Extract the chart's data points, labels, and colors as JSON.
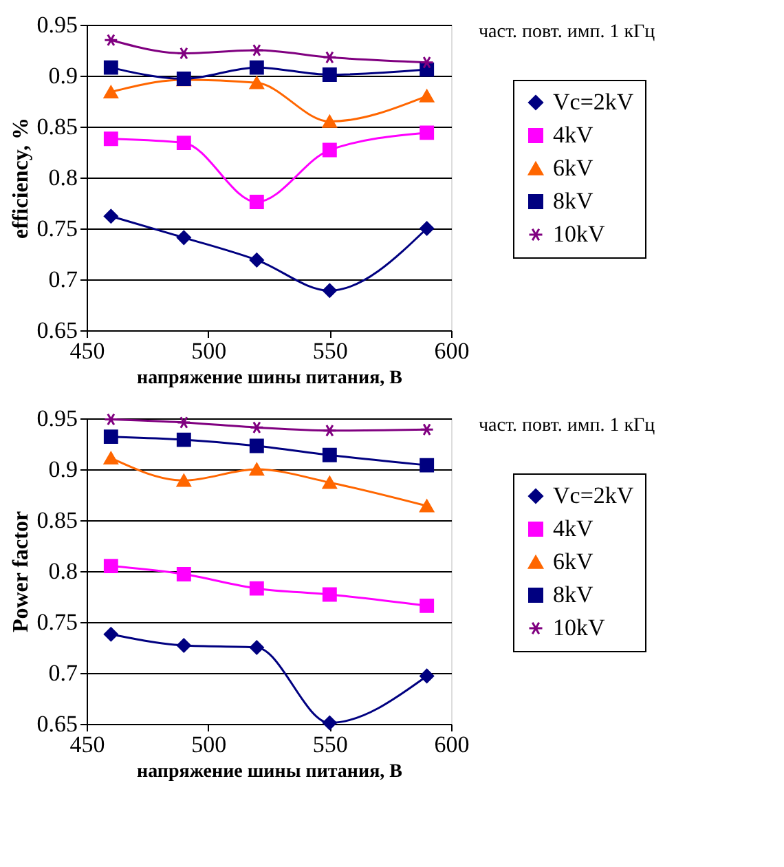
{
  "chart_data": [
    {
      "type": "line",
      "xlabel": "напряжение шины питания, В",
      "ylabel": "efficiency, %",
      "annotations": [
        "част. повт. имп. 1 кГц"
      ],
      "x": [
        460,
        490,
        520,
        550,
        590
      ],
      "xlim": [
        450,
        600
      ],
      "xticks": [
        450,
        500,
        550,
        600
      ],
      "ylim": [
        0.65,
        0.95
      ],
      "yticks": [
        0.65,
        0.7,
        0.75,
        0.8,
        0.85,
        0.9,
        0.95
      ],
      "grid": "y",
      "legend": "right",
      "series": [
        {
          "name": "Vc=2kV",
          "color": "#000080",
          "marker": "diamond",
          "values": [
            0.762,
            0.741,
            0.719,
            0.689,
            0.75
          ]
        },
        {
          "name": "4kV",
          "color": "#ff00ff",
          "marker": "square",
          "values": [
            0.838,
            0.834,
            0.776,
            0.827,
            0.844
          ]
        },
        {
          "name": "6kV",
          "color": "#ff6600",
          "marker": "triangle",
          "values": [
            0.884,
            0.896,
            0.893,
            0.855,
            0.88
          ]
        },
        {
          "name": "8kV",
          "color": "#000080",
          "marker": "square",
          "values": [
            0.908,
            0.897,
            0.908,
            0.901,
            0.906
          ]
        },
        {
          "name": "10kV",
          "color": "#800080",
          "marker": "cross",
          "values": [
            0.935,
            0.922,
            0.925,
            0.918,
            0.913
          ]
        }
      ]
    },
    {
      "type": "line",
      "xlabel": "напряжение шины питания, В",
      "ylabel": "Power factor",
      "annotations": [
        "част. повт. имп. 1 кГц"
      ],
      "x": [
        460,
        490,
        520,
        550,
        590
      ],
      "xlim": [
        450,
        600
      ],
      "xticks": [
        450,
        500,
        550,
        600
      ],
      "ylim": [
        0.65,
        0.95
      ],
      "yticks": [
        0.65,
        0.7,
        0.75,
        0.8,
        0.85,
        0.9,
        0.95
      ],
      "grid": "y",
      "legend": "right",
      "series": [
        {
          "name": "Vc=2kV",
          "color": "#000080",
          "marker": "diamond",
          "values": [
            0.738,
            0.727,
            0.725,
            0.651,
            0.697
          ]
        },
        {
          "name": "4kV",
          "color": "#ff00ff",
          "marker": "square",
          "values": [
            0.805,
            0.797,
            0.783,
            0.777,
            0.766
          ]
        },
        {
          "name": "6kV",
          "color": "#ff6600",
          "marker": "triangle",
          "values": [
            0.911,
            0.889,
            0.9,
            0.887,
            0.864
          ]
        },
        {
          "name": "8kV",
          "color": "#000080",
          "marker": "square",
          "values": [
            0.932,
            0.929,
            0.923,
            0.914,
            0.904
          ]
        },
        {
          "name": "10kV",
          "color": "#800080",
          "marker": "cross",
          "values": [
            0.949,
            0.946,
            0.941,
            0.938,
            0.939
          ]
        }
      ]
    }
  ]
}
